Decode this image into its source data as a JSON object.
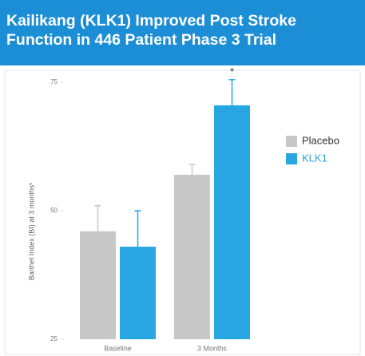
{
  "chart_data": {
    "type": "bar",
    "title": "Kailikang (KLK1) Improved Post Stroke Function in 446 Patient Phase 3 Trial",
    "y_label": "Barthel Index (BI) at 3 months¹",
    "categories": [
      "Baseline",
      "3 Months"
    ],
    "series": [
      {
        "name": "Placebo",
        "color": "#c8c8c8",
        "values": [
          46,
          57
        ],
        "errors": [
          5,
          2
        ]
      },
      {
        "name": "KLK1",
        "color": "#27a6e1",
        "values": [
          43,
          70.5
        ],
        "errors": [
          7,
          5
        ]
      }
    ],
    "annotations": [
      {
        "text": "*",
        "category": 1,
        "series": 1
      }
    ],
    "ylim": [
      25,
      75
    ],
    "yticks": [
      25,
      50,
      75
    ],
    "legend": "right"
  }
}
